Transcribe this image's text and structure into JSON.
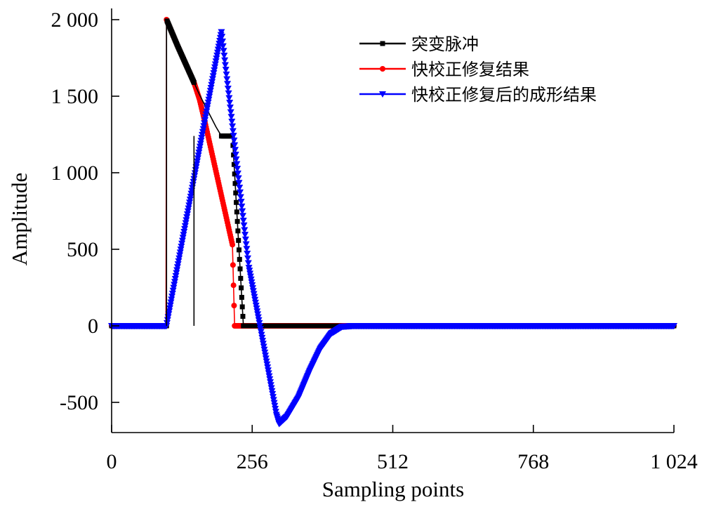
{
  "chart_data": {
    "type": "line",
    "xlabel": "Sampling points",
    "ylabel": "Amplitude",
    "xlim": [
      0,
      1024
    ],
    "ylim": [
      -700,
      2000
    ],
    "xticks": [
      0,
      256,
      512,
      768,
      1024
    ],
    "xtick_labels": [
      "0",
      "256",
      "512",
      "768",
      "1 024"
    ],
    "yticks": [
      -500,
      0,
      500,
      1000,
      1500,
      2000
    ],
    "ytick_labels": [
      "-500",
      "0",
      "500",
      "1 000",
      "1 500",
      "2 000"
    ],
    "grid": false,
    "legend_position": "top-right",
    "series": [
      {
        "name": "突变脉冲",
        "color": "#000000",
        "marker": "square",
        "x": [
          0,
          99,
          100,
          100,
          120,
          140,
          150,
          160,
          170,
          180,
          190,
          200,
          220,
          240,
          256,
          300,
          400,
          500,
          600,
          700,
          800,
          900,
          1024
        ],
        "y": [
          0,
          0,
          0,
          2000,
          1830,
          1670,
          1590,
          1510,
          1440,
          1370,
          1300,
          1240,
          1240,
          0,
          0,
          0,
          0,
          0,
          0,
          0,
          0,
          0,
          0
        ],
        "x_drop": 150
      },
      {
        "name": "快校正修复结果",
        "color": "#ff0000",
        "marker": "circle",
        "x": [
          0,
          99,
          100,
          120,
          140,
          150,
          160,
          170,
          180,
          190,
          200,
          210,
          220,
          224,
          256,
          300,
          400,
          500,
          600,
          700,
          800,
          900,
          1024
        ],
        "y": [
          0,
          0,
          2000,
          1830,
          1670,
          1590,
          1480,
          1330,
          1170,
          1010,
          850,
          690,
          530,
          0,
          0,
          0,
          0,
          0,
          0,
          0,
          0,
          0,
          0
        ]
      },
      {
        "name": "快校正修复后的成形结果",
        "color": "#0000ff",
        "marker": "triangle-down",
        "x": [
          0,
          100,
          150,
          200,
          250,
          270,
          300,
          305,
          320,
          340,
          360,
          380,
          400,
          420,
          440,
          500,
          600,
          700,
          800,
          900,
          1024
        ],
        "y": [
          0,
          0,
          960,
          1920,
          380,
          0,
          -580,
          -640,
          -590,
          -470,
          -300,
          -150,
          -50,
          -5,
          0,
          0,
          0,
          0,
          0,
          0,
          0
        ]
      }
    ]
  }
}
